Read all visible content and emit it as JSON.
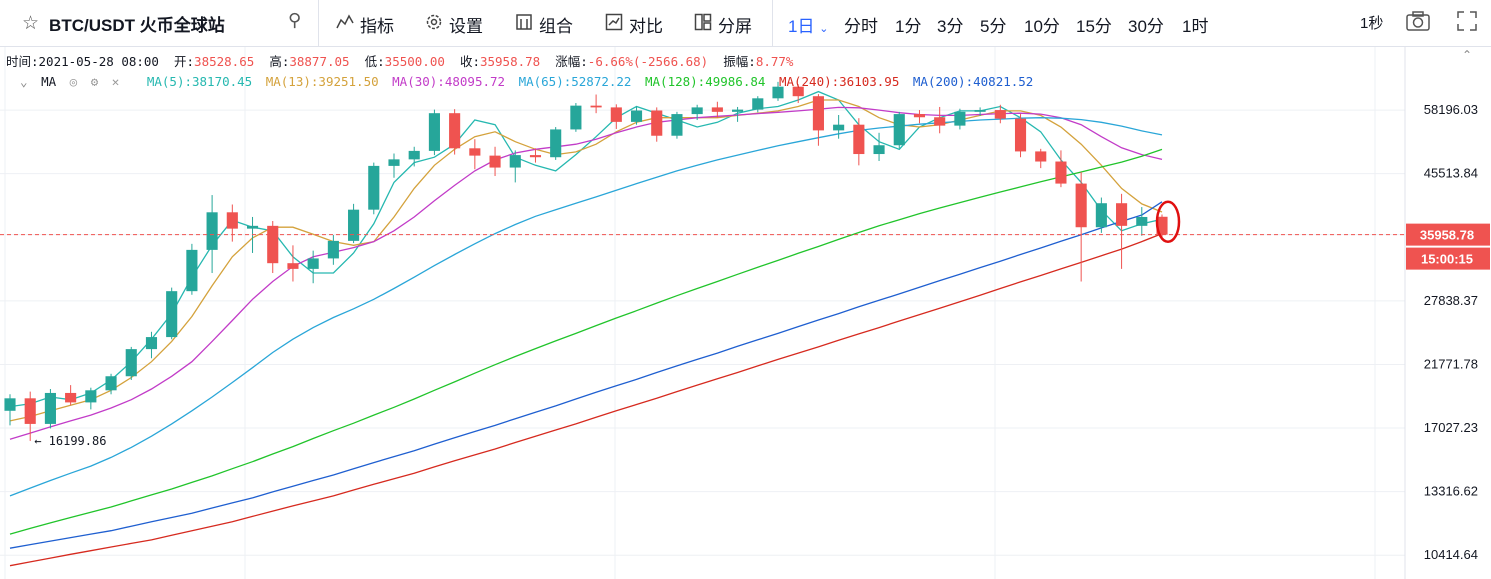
{
  "toolbar": {
    "symbol": "BTC/USDT 火币全球站",
    "tools": [
      {
        "label": "指标",
        "icon": "indicators-icon"
      },
      {
        "label": "设置",
        "icon": "gear-icon"
      },
      {
        "label": "组合",
        "icon": "template-icon"
      },
      {
        "label": "对比",
        "icon": "compare-icon"
      },
      {
        "label": "分屏",
        "icon": "layout-icon"
      }
    ],
    "active_interval": "1日",
    "intervals": [
      "分时",
      "1分",
      "3分",
      "5分",
      "10分",
      "15分",
      "30分",
      "1时"
    ],
    "refresh": "1秒"
  },
  "ohlc": {
    "time_label": "时间:",
    "time": "2021-05-28 08:00",
    "open_label": "开:",
    "open": "38528.65",
    "high_label": "高:",
    "high": "38877.05",
    "low_label": "低:",
    "low": "35500.00",
    "close_label": "收:",
    "close": "35958.78",
    "change_label": "涨幅:",
    "change": "-6.66%(-2566.68)",
    "amp_label": "振幅:",
    "amp": "8.77%"
  },
  "ma_legend": {
    "title": "MA",
    "items": [
      {
        "text": "MA(5):38170.45",
        "color": "#26b8b0"
      },
      {
        "text": "MA(13):39251.50",
        "color": "#d4a23c"
      },
      {
        "text": "MA(30):48095.72",
        "color": "#c23cc8"
      },
      {
        "text": "MA(65):52872.22",
        "color": "#2aa6d8"
      },
      {
        "text": "MA(128):49986.84",
        "color": "#21c42b"
      },
      {
        "text": "MA(240):36103.95",
        "color": "#d62a1f"
      },
      {
        "text": "MA(200):40821.52",
        "color": "#1f5fd0"
      }
    ]
  },
  "price_badge": "35958.78",
  "countdown": "15:00:15",
  "colors": {
    "up": "#26a69a",
    "down": "#ef5350",
    "accent": "#2962ff"
  },
  "chart_data": {
    "type": "line",
    "title": "",
    "xlabel": "",
    "ylabel": "",
    "y_scale": "log",
    "ylim": [
      9500,
      72000
    ],
    "y_ticks": [
      58196.03,
      45513.84,
      35958.78,
      27838.37,
      21771.78,
      17027.23,
      13316.62,
      10414.64
    ],
    "grid": true,
    "last_price": 35958.78,
    "min_label": "16199.86",
    "x_count": 58,
    "series": [
      {
        "name": "MA(5)",
        "color": "#26b8b0",
        "values": [
          18500,
          18700,
          19200,
          19000,
          19500,
          20500,
          22000,
          24000,
          26500,
          30500,
          34500,
          38000,
          37000,
          36500,
          33000,
          31000,
          31000,
          33500,
          37500,
          44000,
          47500,
          48500,
          51000,
          56000,
          55000,
          48500,
          47000,
          46000,
          49000,
          52500,
          56500,
          59000,
          57500,
          56000,
          54500,
          55500,
          57500,
          58500,
          59000,
          60500,
          62500,
          60500,
          55000,
          51500,
          50000,
          54500,
          56500,
          58000,
          58000,
          59000,
          56500,
          53500,
          48000,
          44000,
          39500,
          36500,
          37500,
          38170.45
        ]
      },
      {
        "name": "MA(13)",
        "color": "#d4a23c",
        "values": [
          17500,
          17800,
          18200,
          18600,
          19000,
          19700,
          20700,
          22000,
          23800,
          26200,
          29500,
          33000,
          35500,
          37000,
          37000,
          36000,
          35000,
          34500,
          35000,
          38500,
          43000,
          47000,
          50000,
          52500,
          53500,
          51500,
          50000,
          49000,
          49500,
          51000,
          53500,
          55500,
          56500,
          56500,
          56500,
          56500,
          57000,
          57500,
          58000,
          59000,
          60500,
          60500,
          59000,
          56500,
          55000,
          54500,
          55000,
          56000,
          57000,
          58000,
          58000,
          57000,
          54500,
          51000,
          47000,
          43000,
          40500,
          39251.5
        ]
      },
      {
        "name": "MA(30)",
        "color": "#c23cc8",
        "values": [
          16300,
          16700,
          17100,
          17500,
          17900,
          18400,
          19000,
          19800,
          20800,
          22000,
          23800,
          25800,
          28000,
          30000,
          31800,
          33000,
          33600,
          34200,
          35000,
          36500,
          38500,
          41000,
          43500,
          46000,
          48000,
          49300,
          50000,
          50500,
          51000,
          52000,
          53300,
          54500,
          55500,
          56000,
          56500,
          56800,
          57100,
          57400,
          57700,
          58000,
          58400,
          58800,
          58700,
          58200,
          57600,
          57200,
          57000,
          57000,
          57200,
          57400,
          57500,
          57300,
          56500,
          55000,
          52500,
          50300,
          49000,
          48095.72
        ]
      },
      {
        "name": "MA(65)",
        "color": "#2aa6d8",
        "values": [
          13100,
          13500,
          13900,
          14300,
          14700,
          15200,
          15800,
          16500,
          17300,
          18200,
          19200,
          20300,
          21500,
          22800,
          24000,
          25100,
          26100,
          27000,
          28000,
          29200,
          30500,
          31900,
          33300,
          34700,
          36100,
          37400,
          38600,
          39600,
          40600,
          41600,
          42700,
          43800,
          44900,
          46000,
          47000,
          48000,
          48900,
          49800,
          50700,
          51500,
          52300,
          53100,
          53800,
          54300,
          54700,
          55100,
          55400,
          55700,
          56000,
          56200,
          56400,
          56500,
          56400,
          56100,
          55500,
          54700,
          53700,
          52872.22
        ]
      },
      {
        "name": "MA(128)",
        "color": "#21c42b",
        "values": [
          11300,
          11550,
          11800,
          12050,
          12300,
          12550,
          12850,
          13150,
          13450,
          13800,
          14150,
          14550,
          14950,
          15400,
          15850,
          16350,
          16850,
          17350,
          17900,
          18450,
          19050,
          19700,
          20350,
          21050,
          21750,
          22450,
          23150,
          23850,
          24550,
          25300,
          26050,
          26800,
          27600,
          28400,
          29200,
          30000,
          30850,
          31700,
          32550,
          33450,
          34350,
          35300,
          36250,
          37200,
          38100,
          39000,
          39850,
          40700,
          41550,
          42400,
          43250,
          44100,
          44950,
          45800,
          46700,
          47600,
          48700,
          49986.84
        ]
      },
      {
        "name": "MA(200)",
        "color": "#1f5fd0",
        "values": [
          10700,
          10850,
          11000,
          11150,
          11300,
          11450,
          11650,
          11850,
          12050,
          12250,
          12500,
          12750,
          13000,
          13300,
          13600,
          13900,
          14200,
          14550,
          14900,
          15250,
          15600,
          16000,
          16400,
          16800,
          17200,
          17650,
          18100,
          18550,
          19050,
          19550,
          20050,
          20550,
          21100,
          21650,
          22200,
          22750,
          23350,
          23950,
          24550,
          25200,
          25850,
          26500,
          27200,
          27900,
          28600,
          29350,
          30100,
          30850,
          31650,
          32450,
          33300,
          34150,
          35050,
          35950,
          36900,
          37850,
          38800,
          40821.52
        ]
      },
      {
        "name": "MA(240)",
        "color": "#d62a1f",
        "values": [
          10000,
          10150,
          10300,
          10450,
          10600,
          10750,
          10900,
          11050,
          11250,
          11450,
          11650,
          11850,
          12100,
          12350,
          12600,
          12850,
          13100,
          13400,
          13700,
          14000,
          14300,
          14650,
          15000,
          15350,
          15700,
          16100,
          16500,
          16900,
          17300,
          17750,
          18200,
          18650,
          19100,
          19600,
          20100,
          20600,
          21100,
          21650,
          22200,
          22750,
          23300,
          23900,
          24500,
          25100,
          25750,
          26400,
          27050,
          27750,
          28450,
          29200,
          29950,
          30700,
          31500,
          32300,
          33150,
          34000,
          35000,
          36103.95
        ]
      }
    ],
    "candles": [
      {
        "o": 18200,
        "h": 19400,
        "l": 17200,
        "c": 19100
      },
      {
        "o": 19100,
        "h": 19600,
        "l": 16199.86,
        "c": 17300
      },
      {
        "o": 17300,
        "h": 19800,
        "l": 17000,
        "c": 19500
      },
      {
        "o": 19500,
        "h": 20100,
        "l": 18600,
        "c": 18800
      },
      {
        "o": 18800,
        "h": 19900,
        "l": 18300,
        "c": 19700
      },
      {
        "o": 19700,
        "h": 21000,
        "l": 19400,
        "c": 20800
      },
      {
        "o": 20800,
        "h": 23300,
        "l": 20500,
        "c": 23100
      },
      {
        "o": 23100,
        "h": 24700,
        "l": 22300,
        "c": 24200
      },
      {
        "o": 24200,
        "h": 29300,
        "l": 24000,
        "c": 28900
      },
      {
        "o": 28900,
        "h": 34700,
        "l": 28500,
        "c": 33900
      },
      {
        "o": 33900,
        "h": 41900,
        "l": 31000,
        "c": 39200
      },
      {
        "o": 39200,
        "h": 40400,
        "l": 35000,
        "c": 36800
      },
      {
        "o": 36800,
        "h": 38500,
        "l": 33500,
        "c": 37200
      },
      {
        "o": 37200,
        "h": 37900,
        "l": 31000,
        "c": 32200
      },
      {
        "o": 32200,
        "h": 34500,
        "l": 30000,
        "c": 31500
      },
      {
        "o": 31500,
        "h": 33800,
        "l": 29800,
        "c": 32800
      },
      {
        "o": 32800,
        "h": 35900,
        "l": 32000,
        "c": 35100
      },
      {
        "o": 35100,
        "h": 40500,
        "l": 34800,
        "c": 39600
      },
      {
        "o": 39600,
        "h": 47500,
        "l": 38900,
        "c": 46900
      },
      {
        "o": 46900,
        "h": 49200,
        "l": 44800,
        "c": 48100
      },
      {
        "o": 48100,
        "h": 50500,
        "l": 46800,
        "c": 49700
      },
      {
        "o": 49700,
        "h": 58300,
        "l": 48900,
        "c": 57500
      },
      {
        "o": 57500,
        "h": 58400,
        "l": 49000,
        "c": 50200
      },
      {
        "o": 50200,
        "h": 52000,
        "l": 46300,
        "c": 48800
      },
      {
        "o": 48800,
        "h": 50500,
        "l": 45100,
        "c": 46600
      },
      {
        "o": 46600,
        "h": 49800,
        "l": 44000,
        "c": 48900
      },
      {
        "o": 48900,
        "h": 50200,
        "l": 47500,
        "c": 48500
      },
      {
        "o": 48500,
        "h": 54500,
        "l": 48000,
        "c": 54000
      },
      {
        "o": 54000,
        "h": 59800,
        "l": 53500,
        "c": 59200
      },
      {
        "o": 59200,
        "h": 61800,
        "l": 57500,
        "c": 58800
      },
      {
        "o": 58800,
        "h": 59500,
        "l": 54100,
        "c": 55600
      },
      {
        "o": 55600,
        "h": 59000,
        "l": 55000,
        "c": 58100
      },
      {
        "o": 58100,
        "h": 58800,
        "l": 51500,
        "c": 52700
      },
      {
        "o": 52700,
        "h": 57800,
        "l": 52100,
        "c": 57300
      },
      {
        "o": 57300,
        "h": 59400,
        "l": 56000,
        "c": 58800
      },
      {
        "o": 58800,
        "h": 60100,
        "l": 56500,
        "c": 57800
      },
      {
        "o": 57800,
        "h": 58900,
        "l": 55600,
        "c": 58300
      },
      {
        "o": 58300,
        "h": 61400,
        "l": 57700,
        "c": 60900
      },
      {
        "o": 60900,
        "h": 64900,
        "l": 60300,
        "c": 63700
      },
      {
        "o": 63700,
        "h": 64300,
        "l": 59800,
        "c": 61400
      },
      {
        "o": 61400,
        "h": 61900,
        "l": 50700,
        "c": 53800
      },
      {
        "o": 53800,
        "h": 57100,
        "l": 52100,
        "c": 55000
      },
      {
        "o": 55000,
        "h": 56400,
        "l": 47000,
        "c": 49100
      },
      {
        "o": 49100,
        "h": 53300,
        "l": 47800,
        "c": 50800
      },
      {
        "o": 50800,
        "h": 57800,
        "l": 50200,
        "c": 57300
      },
      {
        "o": 57300,
        "h": 58200,
        "l": 55300,
        "c": 56600
      },
      {
        "o": 56600,
        "h": 58900,
        "l": 53200,
        "c": 54800
      },
      {
        "o": 54800,
        "h": 58500,
        "l": 54000,
        "c": 57800
      },
      {
        "o": 57800,
        "h": 58800,
        "l": 56900,
        "c": 58200
      },
      {
        "o": 58200,
        "h": 59400,
        "l": 55300,
        "c": 56300
      },
      {
        "o": 56300,
        "h": 57300,
        "l": 48500,
        "c": 49600
      },
      {
        "o": 49600,
        "h": 50100,
        "l": 46500,
        "c": 47700
      },
      {
        "o": 47700,
        "h": 49800,
        "l": 43200,
        "c": 43800
      },
      {
        "o": 43800,
        "h": 45800,
        "l": 30000,
        "c": 37000
      },
      {
        "o": 37000,
        "h": 41500,
        "l": 36200,
        "c": 40600
      },
      {
        "o": 40600,
        "h": 42100,
        "l": 31500,
        "c": 37200
      },
      {
        "o": 37200,
        "h": 40000,
        "l": 35800,
        "c": 38500
      },
      {
        "o": 38528.65,
        "h": 38877.05,
        "l": 35500.0,
        "c": 35958.78
      }
    ]
  }
}
